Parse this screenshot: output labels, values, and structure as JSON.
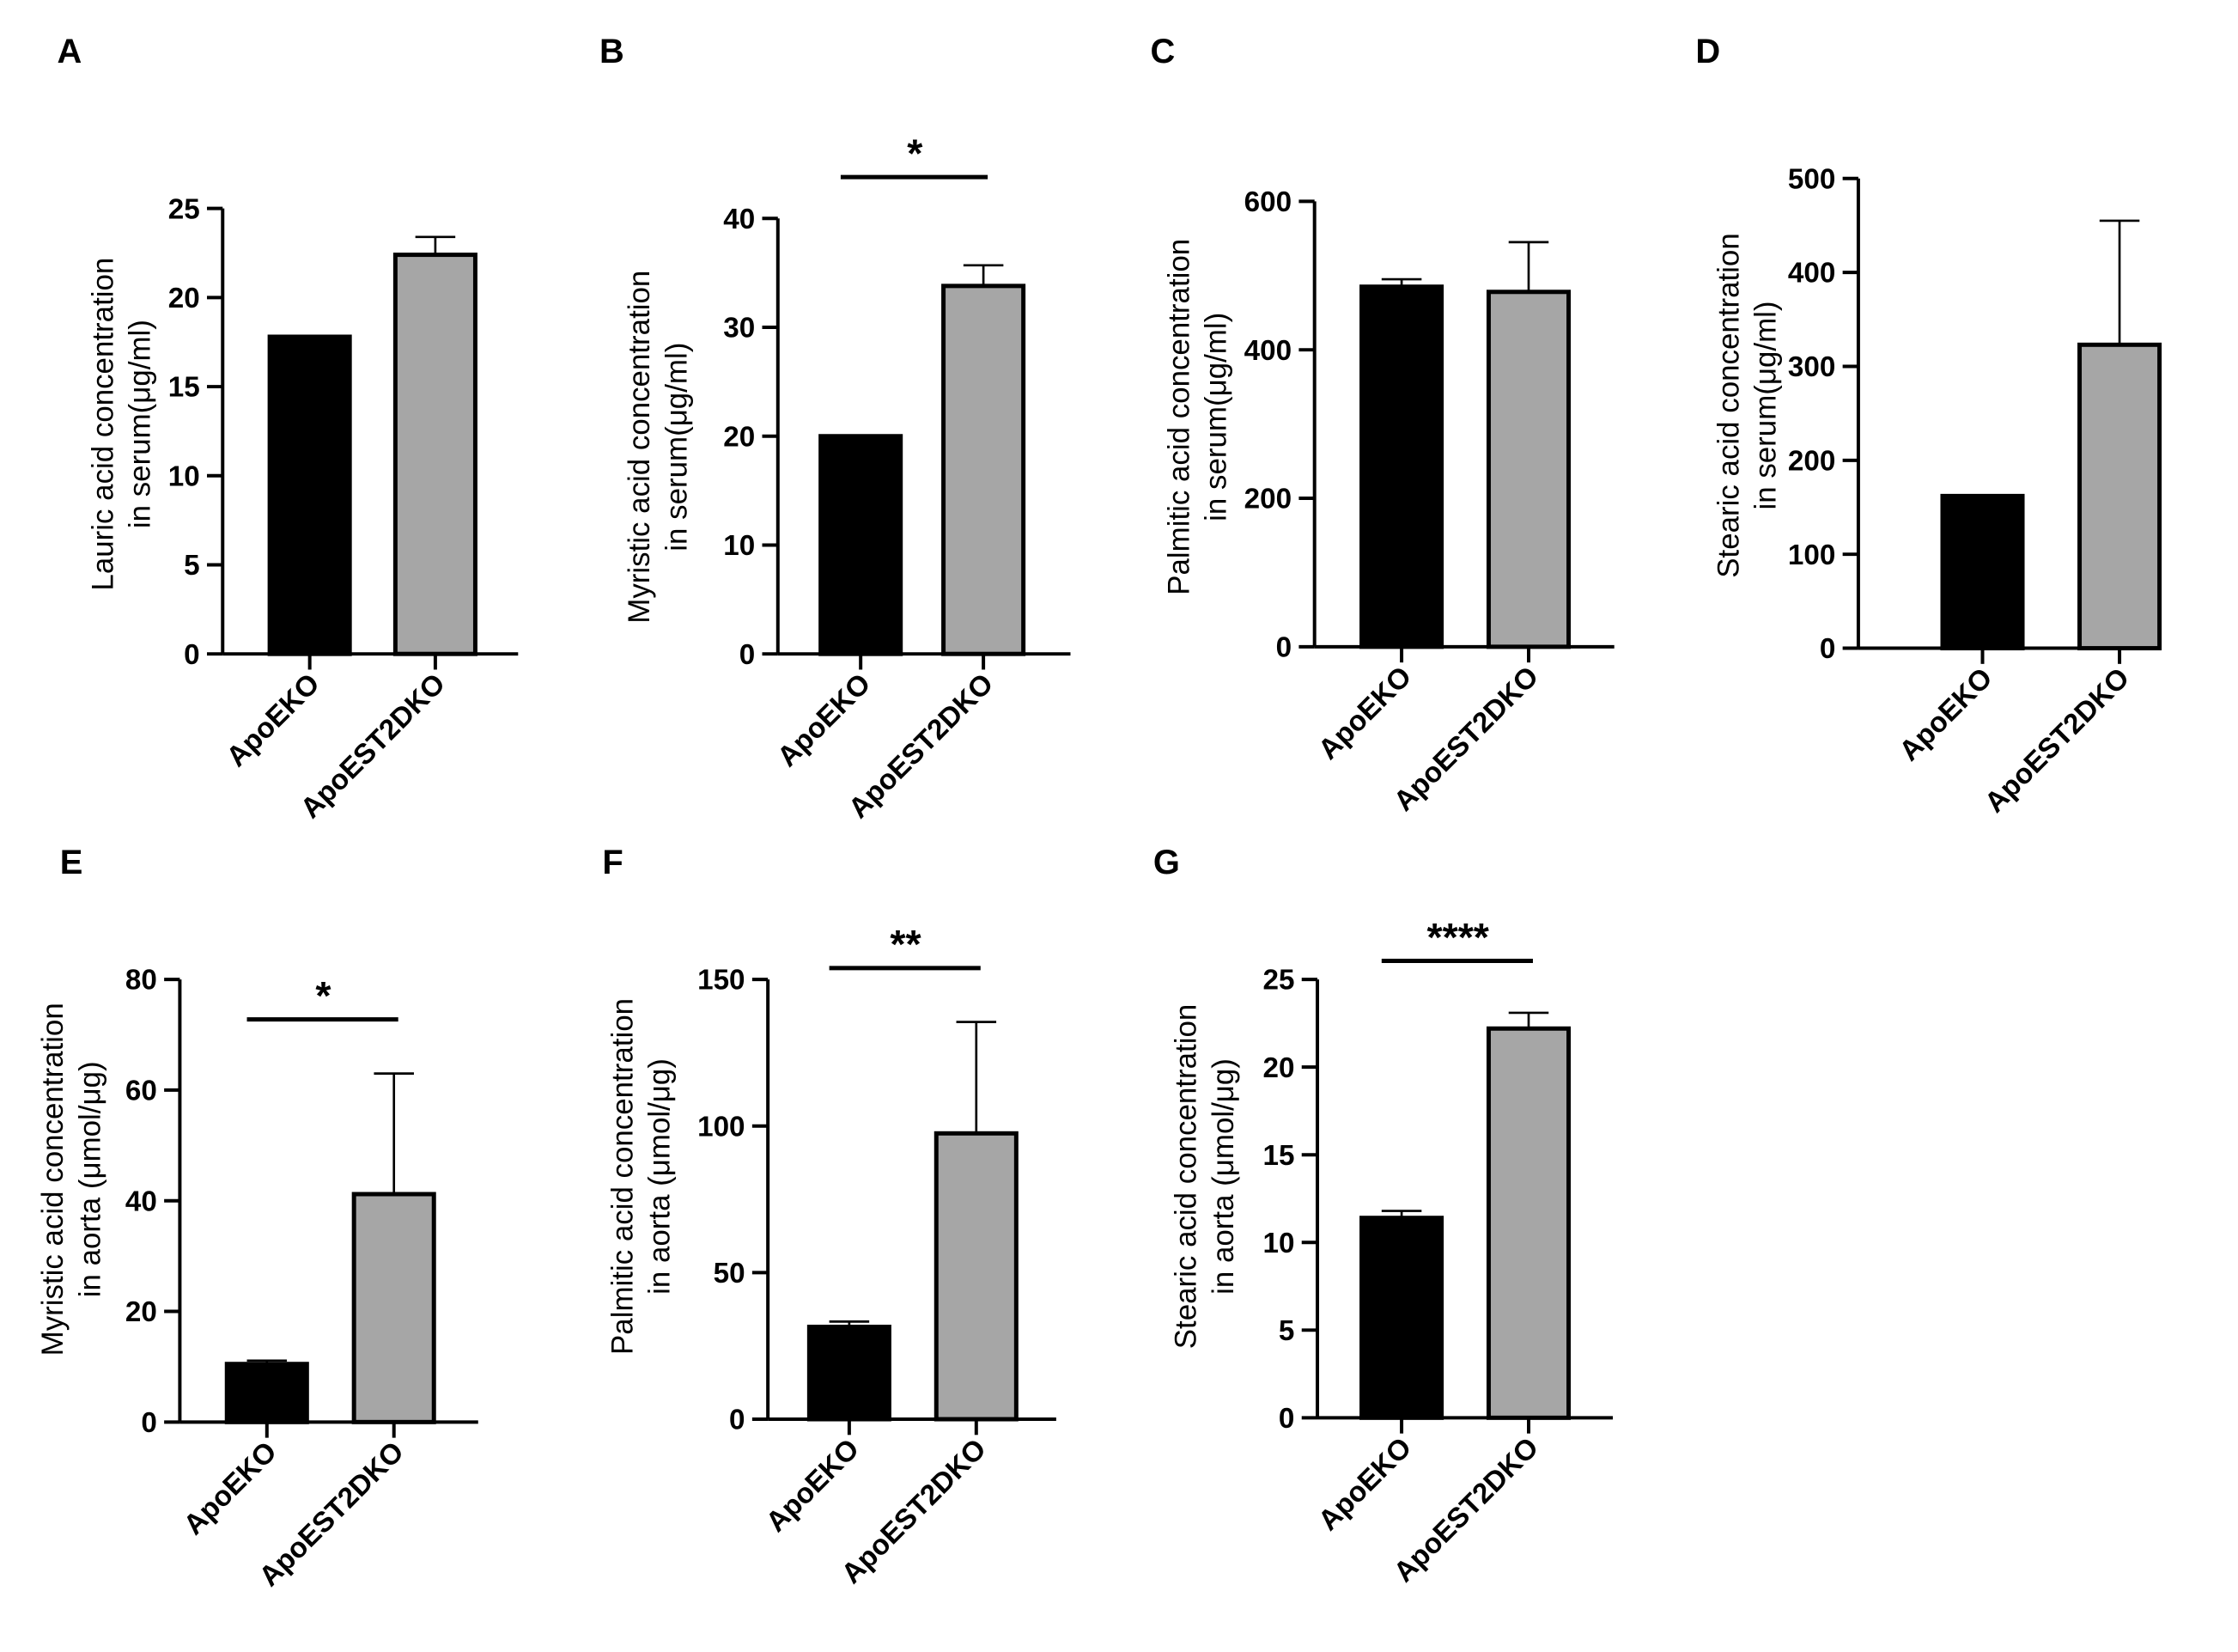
{
  "figure": {
    "background": "#ffffff",
    "bar_colors": [
      "#000000",
      "#a6a6a6"
    ]
  },
  "chart_data": [
    {
      "panel": "A",
      "type": "bar",
      "categories": [
        "ApoEKO",
        "ApoEST2DKO"
      ],
      "values": [
        17.8,
        22.4
      ],
      "errors": [
        0,
        1.0
      ],
      "ylabel_lines": [
        "Lauric acid concentration",
        "in serum(μg/ml)"
      ],
      "ylim": [
        0,
        25
      ],
      "yticks": [
        0,
        5,
        10,
        15,
        20,
        25
      ],
      "significance": ""
    },
    {
      "panel": "B",
      "type": "bar",
      "categories": [
        "ApoEKO",
        "ApoEST2DKO"
      ],
      "values": [
        20,
        33.8
      ],
      "errors": [
        0,
        1.9
      ],
      "ylabel_lines": [
        "Myristic acid concentration",
        "in serum(μg/ml)"
      ],
      "ylim": [
        0,
        40
      ],
      "yticks": [
        0,
        10,
        20,
        30,
        40
      ],
      "significance": "*"
    },
    {
      "panel": "C",
      "type": "bar",
      "categories": [
        "ApoEKO",
        "ApoEST2DKO"
      ],
      "values": [
        485,
        478
      ],
      "errors": [
        10,
        67
      ],
      "ylabel_lines": [
        "Palmitic acid concentration",
        "in serum(μg/ml)"
      ],
      "ylim": [
        0,
        600
      ],
      "yticks": [
        0,
        200,
        400,
        600
      ],
      "significance": ""
    },
    {
      "panel": "D",
      "type": "bar",
      "categories": [
        "ApoEKO",
        "ApoEST2DKO"
      ],
      "values": [
        162,
        323
      ],
      "errors": [
        0,
        132
      ],
      "ylabel_lines": [
        "Stearic acid concentration",
        "in serum(μg/ml)"
      ],
      "ylim": [
        0,
        500
      ],
      "yticks": [
        0,
        100,
        200,
        300,
        400,
        500
      ],
      "significance": ""
    },
    {
      "panel": "E",
      "type": "bar",
      "categories": [
        "ApoEKO",
        "ApoEST2DKO"
      ],
      "values": [
        10.5,
        41.2
      ],
      "errors": [
        0.6,
        21.8
      ],
      "ylabel_lines": [
        "Myristic acid concentration",
        "in aorta (μmol/μg)"
      ],
      "ylim": [
        0,
        80
      ],
      "yticks": [
        0,
        20,
        40,
        60,
        80
      ],
      "significance": "*"
    },
    {
      "panel": "F",
      "type": "bar",
      "categories": [
        "ApoEKO",
        "ApoEST2DKO"
      ],
      "values": [
        31.5,
        97.5
      ],
      "errors": [
        1.8,
        38
      ],
      "ylabel_lines": [
        "Palmitic acid concentration",
        "in aorta (μmol/μg)"
      ],
      "ylim": [
        0,
        150
      ],
      "yticks": [
        0,
        50,
        100,
        150
      ],
      "significance": "**"
    },
    {
      "panel": "G",
      "type": "bar",
      "categories": [
        "ApoEKO",
        "ApoEST2DKO"
      ],
      "values": [
        11.4,
        22.2
      ],
      "errors": [
        0.4,
        0.9
      ],
      "ylabel_lines": [
        "Stearic acid concentration",
        "in aorta (μmol/μg)"
      ],
      "ylim": [
        0,
        25
      ],
      "yticks": [
        0,
        5,
        10,
        15,
        20,
        25
      ],
      "significance": "****"
    }
  ]
}
